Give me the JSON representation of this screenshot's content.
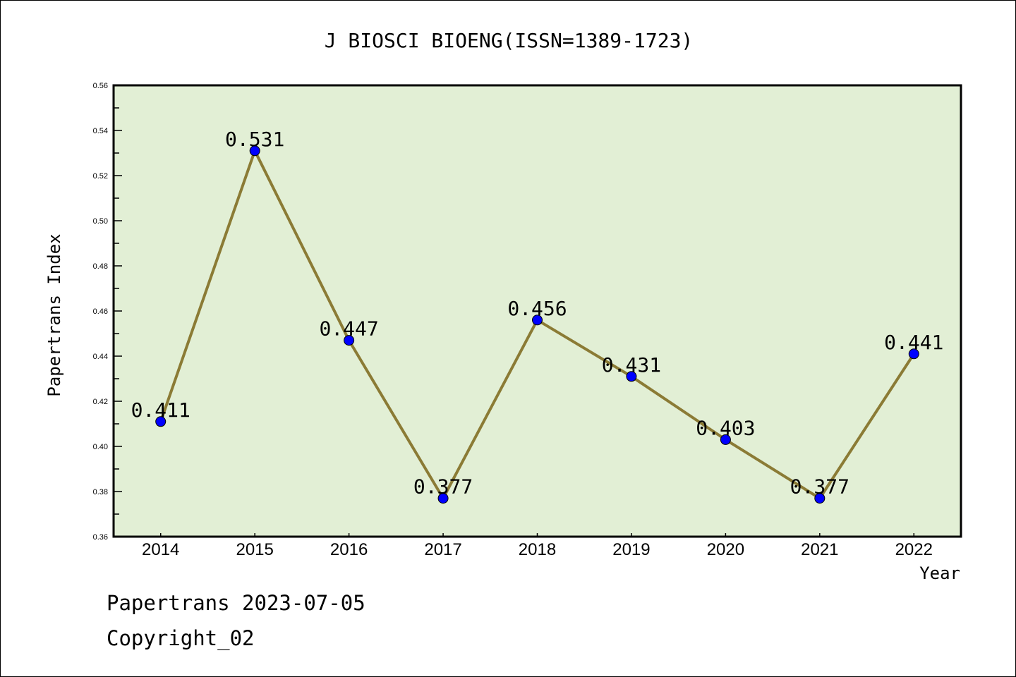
{
  "chart_data": {
    "type": "line",
    "title": "J BIOSCI BIOENG(ISSN=1389-1723)",
    "xlabel": "Year",
    "ylabel": "Papertrans Index",
    "categories": [
      "2014",
      "2015",
      "2016",
      "2017",
      "2018",
      "2019",
      "2020",
      "2021",
      "2022"
    ],
    "values": [
      0.411,
      0.531,
      0.447,
      0.377,
      0.456,
      0.431,
      0.403,
      0.377,
      0.441
    ],
    "data_labels": [
      "0.411",
      "0.531",
      "0.447",
      "0.377",
      "0.456",
      "0.431",
      "0.403",
      "0.377",
      "0.441"
    ],
    "ylim": [
      0.36,
      0.56
    ],
    "yticks": [
      "0.36",
      "0.38",
      "0.40",
      "0.42",
      "0.44",
      "0.46",
      "0.48",
      "0.50",
      "0.52",
      "0.54",
      "0.56"
    ],
    "grid": false,
    "legend": "none",
    "colors": {
      "plot_bg": "#E2EFD5",
      "line": "#8B7B35",
      "marker": "#0000FF"
    }
  },
  "footer": {
    "line1": "Papertrans 2023-07-05",
    "line2": "Copyright_02"
  }
}
